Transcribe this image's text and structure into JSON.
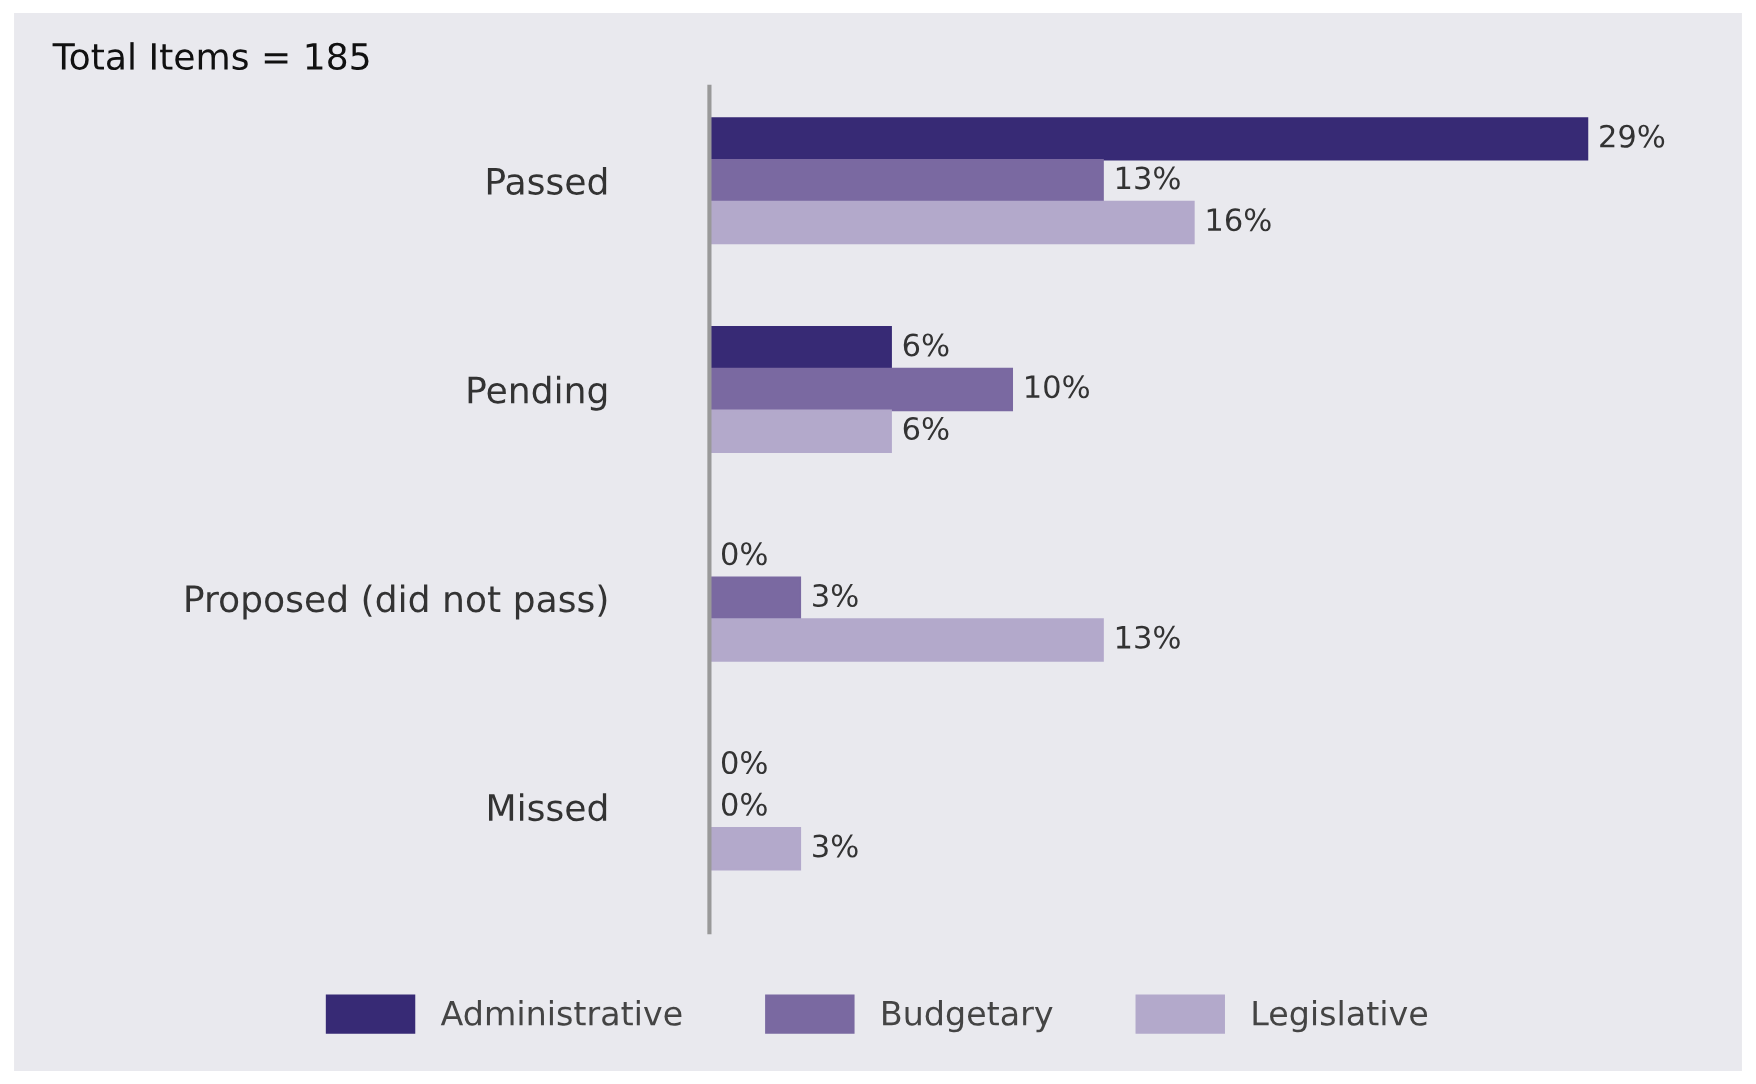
{
  "chart_data": {
    "type": "bar",
    "orientation": "horizontal",
    "title": "Total Items = 185",
    "categories": [
      "Passed",
      "Pending",
      "Proposed (did not pass)",
      "Missed"
    ],
    "series": [
      {
        "name": "Administrative",
        "color": "#372a75",
        "values": [
          29,
          6,
          0,
          0
        ],
        "value_labels": [
          "29%",
          "6%",
          "0%",
          "0%"
        ]
      },
      {
        "name": "Budgetary",
        "color": "#7a69a1",
        "values": [
          13,
          10,
          3,
          0
        ],
        "value_labels": [
          "13%",
          "10%",
          "3%",
          "0%"
        ]
      },
      {
        "name": "Legislative",
        "color": "#b3a9cb",
        "values": [
          16,
          6,
          13,
          3
        ],
        "value_labels": [
          "16%",
          "6%",
          "13%",
          "3%"
        ]
      }
    ],
    "legend": "bottom",
    "grid": false
  }
}
